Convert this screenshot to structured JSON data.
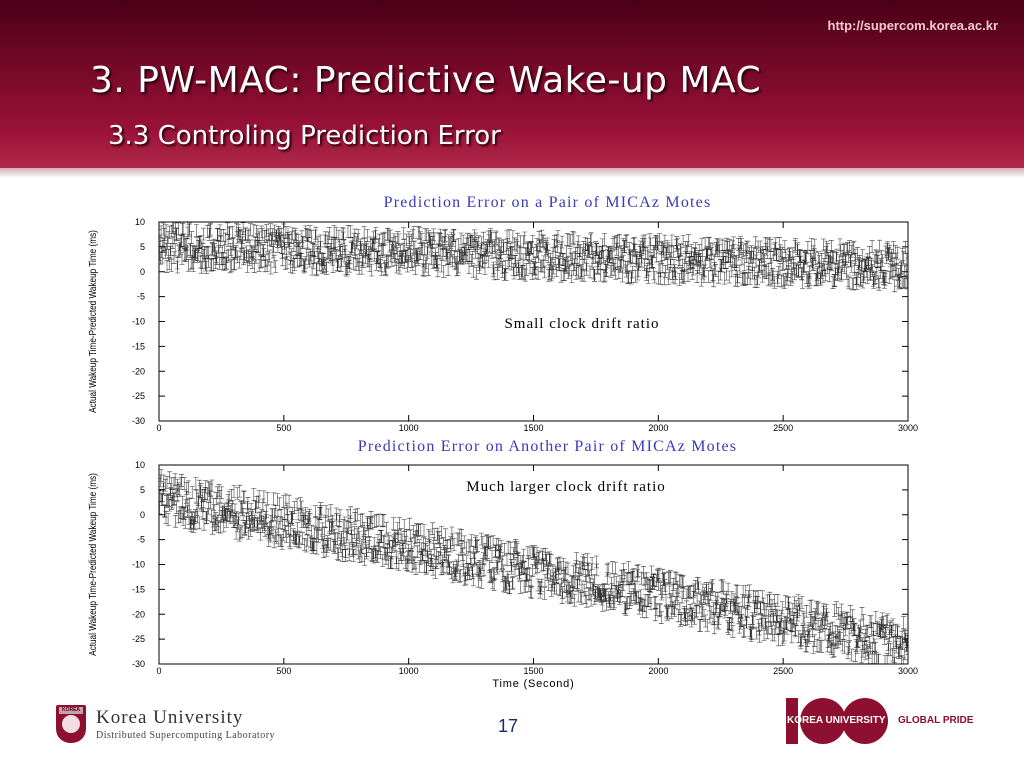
{
  "slide": {
    "url": "http://supercom.korea.ac.kr",
    "title": "3. PW-MAC: Predictive Wake-up MAC",
    "subtitle": "3.3 Controling Prediction Error",
    "page_number": "17",
    "footer_left_name": "Korea University",
    "footer_left_lab": "Distributed Supercomputing Laboratory",
    "footer_left_shield": "KOREA",
    "footer_right_university": "KOREA UNIVERSITY",
    "footer_right_tagline": "GLOBAL PRIDE"
  },
  "colors": {
    "header_dark": "#4a0018",
    "header_light": "#b02a4c",
    "chart_title": "#3b3bb8",
    "data": "#111111",
    "brand": "#8e1030"
  },
  "chart_data": [
    {
      "type": "scatter",
      "title": "Prediction Error on a Pair of MICAz Motes",
      "annotation": "Small clock drift ratio",
      "ylabel": "Actual Wakeup Time-Predicted Wakeup Time (ms)",
      "xlabel": "",
      "xlim": [
        0,
        3000
      ],
      "ylim": [
        -30,
        10
      ],
      "xticks": [
        0,
        500,
        1000,
        1500,
        2000,
        2500,
        3000
      ],
      "yticks": [
        10,
        5,
        0,
        -5,
        -10,
        -15,
        -20,
        -25,
        -30
      ],
      "trend": {
        "x": [
          0,
          1000,
          2000,
          3000
        ],
        "y": [
          5,
          4,
          2.5,
          1
        ]
      },
      "spread_ms": 4,
      "error_bar_ms": 1.2,
      "marker": "error-bar",
      "grid": false
    },
    {
      "type": "scatter",
      "title": "Prediction Error on Another Pair of MICAz Motes",
      "annotation": "Much larger clock drift ratio",
      "ylabel": "Actual Wakeup Time-Predicted Wakeup Time (ms)",
      "xlabel": "Time (Second)",
      "xlim": [
        0,
        3000
      ],
      "ylim": [
        -30,
        10
      ],
      "xticks": [
        0,
        500,
        1000,
        1500,
        2000,
        2500,
        3000
      ],
      "yticks": [
        10,
        5,
        0,
        -5,
        -10,
        -15,
        -20,
        -25,
        -30
      ],
      "trend": {
        "x": [
          0,
          3000
        ],
        "y": [
          3.5,
          -26
        ]
      },
      "spread_ms": 4.5,
      "error_bar_ms": 1.2,
      "marker": "error-bar",
      "grid": false
    }
  ]
}
